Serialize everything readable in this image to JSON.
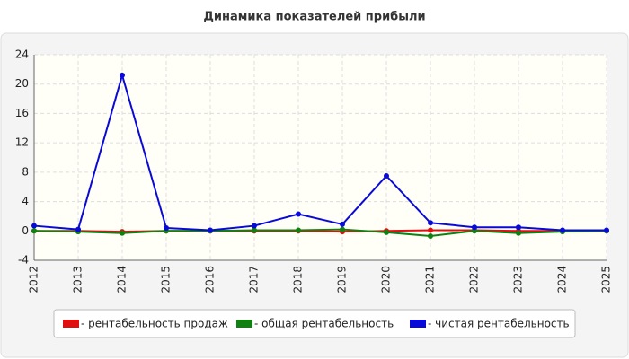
{
  "chart_data": {
    "type": "line",
    "title": "Динамика показателей прибыли",
    "categories": [
      "2012",
      "2013",
      "2014",
      "2015",
      "2016",
      "2017",
      "2018",
      "2019",
      "2020",
      "2021",
      "2022",
      "2023",
      "2024",
      "2025"
    ],
    "series": [
      {
        "name": "- рентабельность продаж",
        "color": "#e01010",
        "values": [
          0.0,
          0.0,
          -0.1,
          0.0,
          0.0,
          0.0,
          0.0,
          -0.1,
          0.0,
          0.1,
          0.1,
          0.0,
          0.0,
          0.0
        ]
      },
      {
        "name": "- общая рентабельность",
        "color": "#108010",
        "values": [
          0.0,
          -0.1,
          -0.3,
          0.0,
          0.0,
          0.1,
          0.1,
          0.2,
          -0.2,
          -0.7,
          0.0,
          -0.3,
          -0.1,
          0.0
        ]
      },
      {
        "name": "- чистая рентабельность",
        "color": "#0a0ad8",
        "values": [
          0.7,
          0.2,
          21.2,
          0.4,
          0.1,
          0.7,
          2.3,
          0.9,
          7.5,
          1.1,
          0.5,
          0.5,
          0.1,
          0.1
        ]
      }
    ],
    "ylim": [
      -4,
      24
    ],
    "yticks": [
      -4,
      0,
      4,
      8,
      12,
      16,
      20,
      24
    ],
    "grid": true
  }
}
